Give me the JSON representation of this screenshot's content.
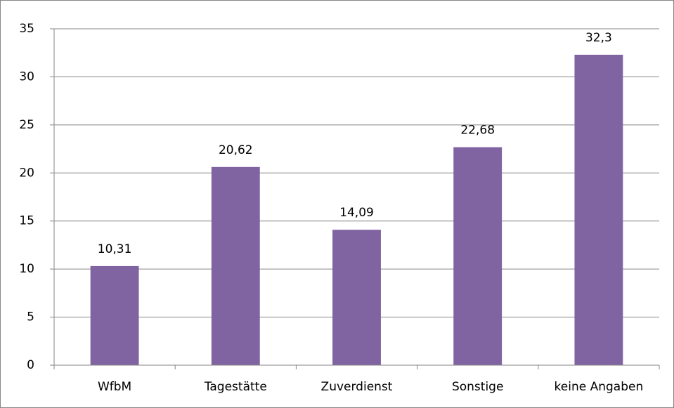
{
  "chart_data": {
    "type": "bar",
    "categories": [
      "WfbM",
      "Tagestätte",
      "Zuverdienst",
      "Sonstige",
      "keine Angaben"
    ],
    "values": [
      10.31,
      20.62,
      14.09,
      22.68,
      32.3
    ],
    "value_labels": [
      "10,31",
      "20,62",
      "14,09",
      "22,68",
      "32,3"
    ],
    "color": "#8064a2",
    "ylim": [
      0,
      35
    ],
    "yticks": [
      0,
      5,
      10,
      15,
      20,
      25,
      30,
      35
    ],
    "grid": true
  }
}
